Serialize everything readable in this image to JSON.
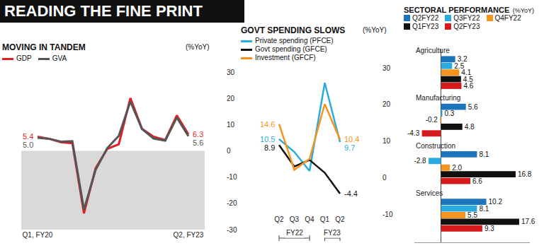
{
  "page_title": "READING THE FINE PRINT",
  "chart_data": [
    {
      "type": "line",
      "title": "MOVING IN TANDEM",
      "subtitle": "(%YoY)",
      "categories": [
        "Q1, FY20",
        null,
        null,
        null,
        null,
        null,
        null,
        null,
        null,
        null,
        null,
        null,
        null,
        "Q2, FY23"
      ],
      "series": [
        {
          "name": "GDP",
          "color": "#e31e24",
          "values": [
            5.4,
            4.6,
            3.3,
            2.9,
            -23.8,
            -6.6,
            0.7,
            2.5,
            20.1,
            8.4,
            5.4,
            4.1,
            13.5,
            6.3
          ],
          "value_labels": [
            "5.4",
            null,
            null,
            null,
            null,
            null,
            null,
            null,
            null,
            null,
            null,
            null,
            null,
            "6.3"
          ]
        },
        {
          "name": "GVA",
          "color": "#555555",
          "values": [
            5.0,
            4.6,
            3.5,
            3.7,
            -22.4,
            -7.3,
            1.0,
            5.7,
            18.8,
            8.3,
            4.7,
            3.9,
            12.7,
            5.6
          ],
          "value_labels": [
            "5.0",
            null,
            null,
            null,
            null,
            null,
            null,
            null,
            null,
            null,
            null,
            null,
            null,
            "5.6"
          ]
        }
      ],
      "ylim": [
        -30,
        30
      ],
      "yticks": [
        -30,
        -20,
        -10,
        0,
        10,
        20,
        30
      ],
      "grid": false,
      "legend": "top"
    },
    {
      "type": "line",
      "title": "GOVT SPENDING SLOWS",
      "subtitle": "(%YoY)",
      "categories": [
        "Q2",
        "Q3",
        "Q4",
        "Q1",
        "Q2"
      ],
      "category_groups": [
        "FY22",
        "FY22",
        "FY22",
        "FY23",
        "FY23"
      ],
      "series": [
        {
          "name": "Private spending (PFCE)",
          "color": "#29abe2",
          "values": [
            10.5,
            7.0,
            1.8,
            25.9,
            9.7
          ],
          "value_labels": [
            "10.5",
            null,
            null,
            null,
            "9.7"
          ]
        },
        {
          "name": "Govt spending (GFCE)",
          "color": "#111111",
          "values": [
            8.9,
            3.0,
            4.8,
            1.3,
            -4.4
          ],
          "value_labels": [
            "8.9",
            null,
            null,
            null,
            "-4.4"
          ]
        },
        {
          "name": "Investment (GFCF)",
          "color": "#f7941d",
          "values": [
            14.6,
            2.1,
            5.1,
            20.1,
            10.4
          ],
          "value_labels": [
            "14.6",
            null,
            null,
            null,
            "10.4"
          ]
        }
      ],
      "ylim": [
        -10,
        30
      ],
      "yticks": [
        -10,
        0,
        10,
        20,
        30
      ],
      "grid": false,
      "legend": "top"
    },
    {
      "type": "bar",
      "orientation": "horizontal",
      "title": "SECTORAL PERFORMANCE",
      "subtitle": "(%YoY)",
      "categories": [
        "Agriculture",
        "Manufacturing",
        "Construction",
        "Services"
      ],
      "series": [
        {
          "name": "Q2FY22",
          "color": "#1c75bc",
          "values": [
            3.2,
            5.6,
            8.1,
            10.2
          ],
          "value_labels": [
            "3.2",
            "5.6",
            "8.1",
            "10.2"
          ]
        },
        {
          "name": "Q3FY22",
          "color": "#29abe2",
          "values": [
            2.5,
            0.3,
            -2.8,
            8.1
          ],
          "value_labels": [
            "2.5",
            "0.3",
            "-2.8",
            "8.1"
          ]
        },
        {
          "name": "Q4FY22",
          "color": "#f7941d",
          "values": [
            4.1,
            -0.2,
            2.0,
            5.5
          ],
          "value_labels": [
            "4.1",
            "-0.2",
            "2.0",
            "5.5"
          ]
        },
        {
          "name": "Q1FY23",
          "color": "#111111",
          "values": [
            4.5,
            4.8,
            16.8,
            17.6
          ],
          "value_labels": [
            "4.5",
            "4.8",
            "16.8",
            "17.6"
          ]
        },
        {
          "name": "Q2FY23",
          "color": "#d7191c",
          "values": [
            4.6,
            -4.3,
            6.6,
            9.3
          ],
          "value_labels": [
            "4.6",
            "-4.3",
            "6.6",
            "9.3"
          ]
        }
      ],
      "xlim": [
        -6,
        20
      ],
      "xticks": [],
      "tick_labels": false,
      "grid": false,
      "data_labels": true,
      "legend": "top"
    }
  ]
}
